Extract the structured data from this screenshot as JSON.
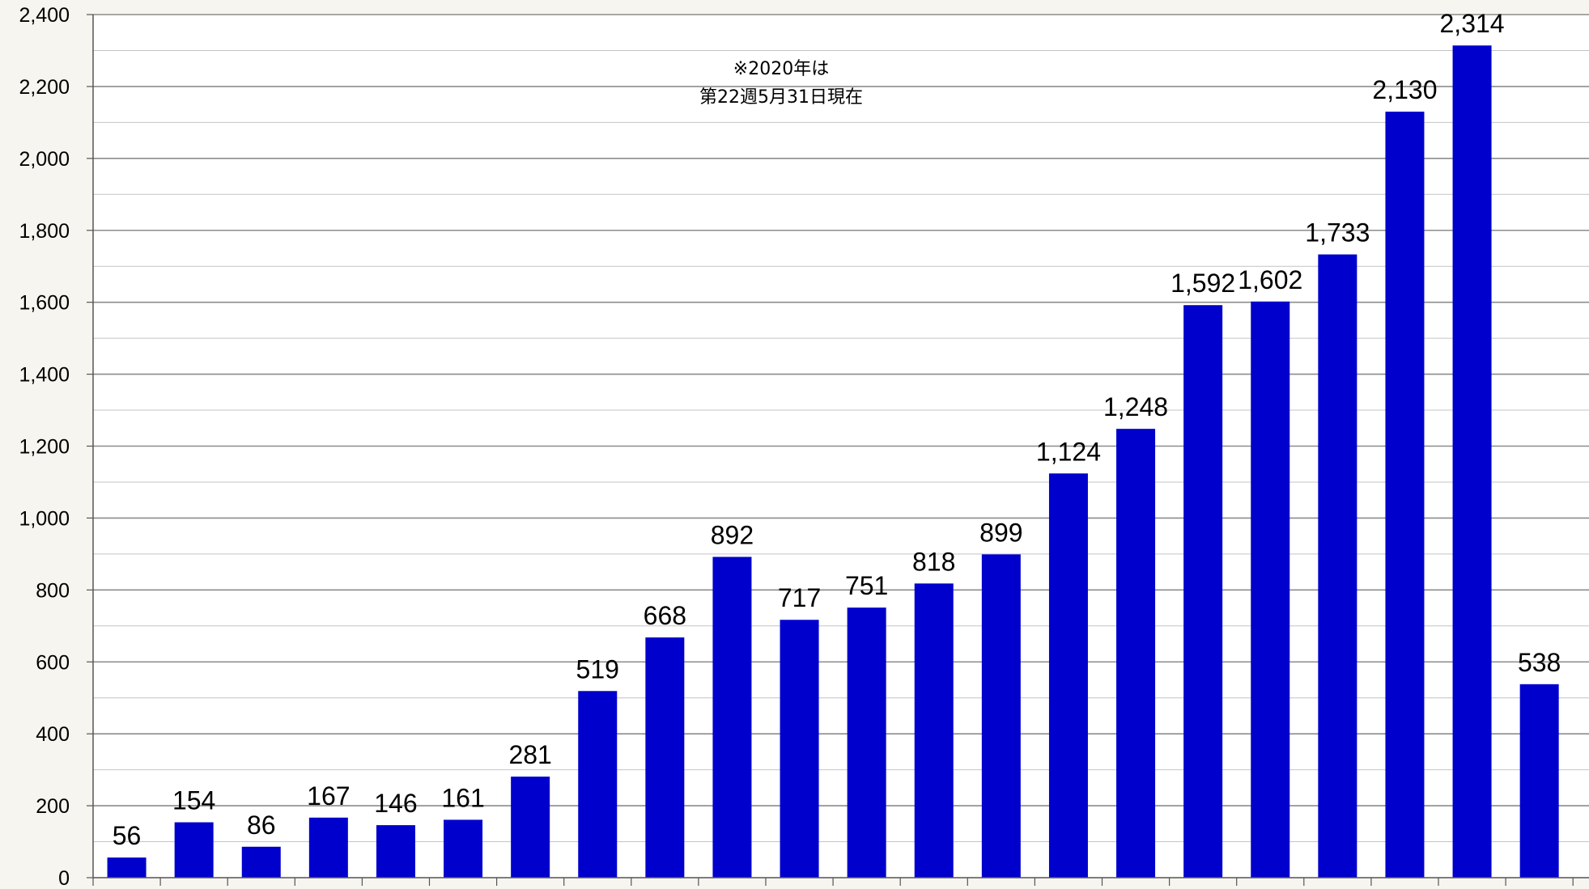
{
  "chart_data": {
    "type": "bar",
    "title": "",
    "xlabel": "",
    "ylabel": "",
    "ylim": [
      0,
      2400
    ],
    "yticks": [
      "0",
      "200",
      "400",
      "600",
      "800",
      "1,000",
      "1,200",
      "1,400",
      "1,600",
      "1,800",
      "2,000",
      "2,200",
      "2,400"
    ],
    "minor_grid_step": 100,
    "grid": true,
    "bar_color": "#0000cc",
    "label_color": "#000000",
    "highlight_label_color": "#ff0000",
    "values": [
      56,
      154,
      86,
      167,
      146,
      161,
      281,
      519,
      668,
      892,
      717,
      751,
      818,
      899,
      1124,
      1248,
      1592,
      1602,
      1733,
      2130,
      2314,
      538
    ],
    "data_labels": [
      "56",
      "154",
      "86",
      "167",
      "146",
      "161",
      "281",
      "519",
      "668",
      "892",
      "717",
      "751",
      "818",
      "899",
      "1,124",
      "1,248",
      "1,592",
      "1,602",
      "1,733",
      "2,130",
      "2,314",
      "538"
    ],
    "highlight_index": 21,
    "annotation": [
      "※2020年は",
      "第22週5月31日現在"
    ]
  }
}
